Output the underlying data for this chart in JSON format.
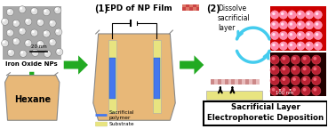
{
  "bg_color": "#ffffff",
  "title": "Sacrificial Layer\nElectrophoretic Deposition",
  "arrow_color": "#22aa22",
  "hexane_color": "#e8b878",
  "substrate_color": "#e8e480",
  "sacrificial_color": "#4477ee",
  "text_color": "#000000",
  "step1_label": "(1)",
  "step1_rest": "EPD of NP Film",
  "step2_label": "(2)",
  "step2_rest": "Dissolve\nsacrificial\nlayer",
  "legend_sacrificial": "Sacrificial\npolymer",
  "legend_substrate": "Substrate",
  "iron_oxide_label": "Iron Oxide NPs",
  "hexane_label": "Hexane",
  "scale_bar_nm": "20 nm",
  "scale_bar2_nm": "100 nm",
  "tem_bg": "#a8a8a8",
  "tem_circle_fill": "#e0e0e0",
  "tem_circle_edge": "#686868",
  "np_image1_bg": "#cc0000",
  "np_image1_circle": "#ff88aa",
  "np_image2_bg": "#220000",
  "np_image2_circle": "#bb2233",
  "film_color": "#cc8888",
  "film_stripe": "#bb6666",
  "cyan_arrow": "#44ccee",
  "beaker_line": "#888888"
}
